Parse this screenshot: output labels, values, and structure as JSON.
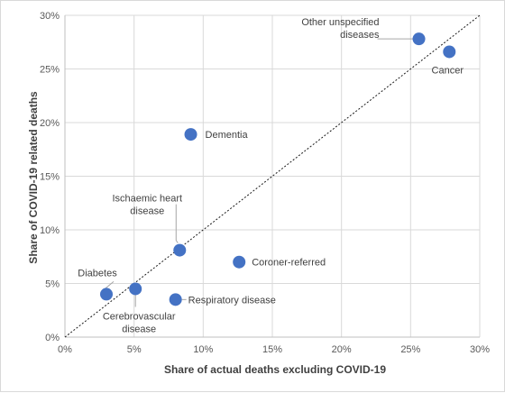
{
  "chart_data": {
    "type": "scatter",
    "xlabel": "Share of actual deaths excluding COVID-19",
    "ylabel": "Share of COVID-19 related deaths",
    "xlim": [
      0,
      30
    ],
    "ylim": [
      0,
      30
    ],
    "x_ticks": [
      "0%",
      "5%",
      "10%",
      "15%",
      "20%",
      "25%",
      "30%"
    ],
    "y_ticks": [
      "0%",
      "5%",
      "10%",
      "15%",
      "20%",
      "25%",
      "30%"
    ],
    "grid": "vertical and horizontal",
    "reference_line": "y = x (dashed diagonal)",
    "marker_color": "#4472C4",
    "points": [
      {
        "label_lines": [
          "Other unspecified",
          "diseases"
        ],
        "x": 25.6,
        "y": 27.8
      },
      {
        "label_lines": [
          "Cancer"
        ],
        "x": 27.8,
        "y": 26.6
      },
      {
        "label_lines": [
          "Dementia"
        ],
        "x": 9.1,
        "y": 18.9
      },
      {
        "label_lines": [
          "Ischaemic heart",
          "disease"
        ],
        "x": 8.3,
        "y": 8.1
      },
      {
        "label_lines": [
          "Coroner-referred"
        ],
        "x": 12.6,
        "y": 7.0
      },
      {
        "label_lines": [
          "Diabetes"
        ],
        "x": 3.0,
        "y": 4.0
      },
      {
        "label_lines": [
          "Cerebrovascular",
          "disease"
        ],
        "x": 5.1,
        "y": 4.5
      },
      {
        "label_lines": [
          "Respiratory disease"
        ],
        "x": 8.0,
        "y": 3.5
      }
    ]
  }
}
